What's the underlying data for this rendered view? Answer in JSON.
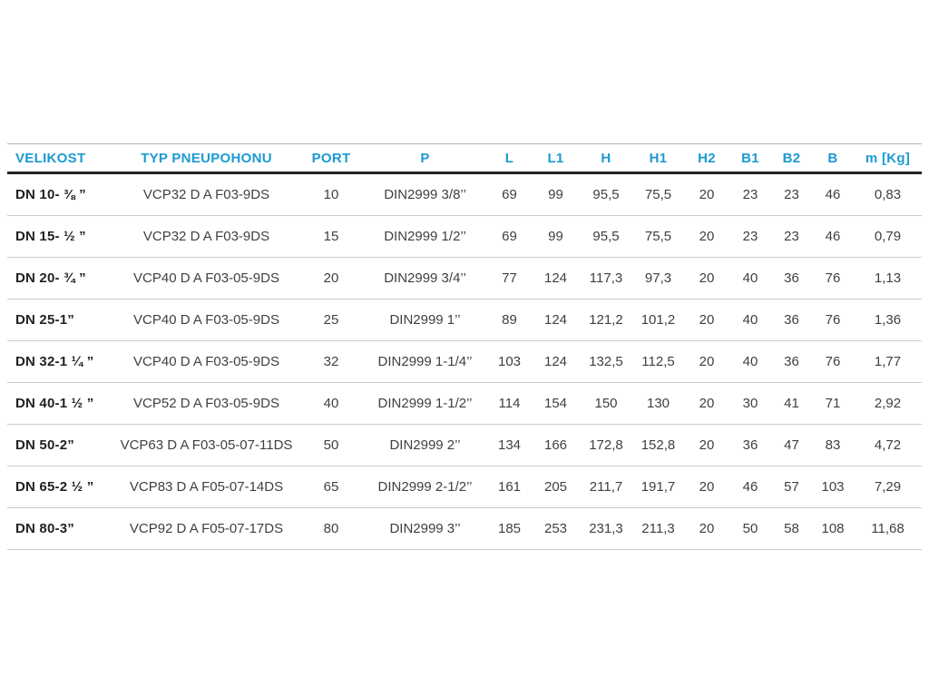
{
  "colors": {
    "header_text": "#1b9ad3",
    "header_rule_top": "#b5b5b5",
    "header_rule_bottom": "#26221f",
    "row_divider": "#cccccc",
    "first_column_text": "#231f20",
    "cell_text": "#414040"
  },
  "table": {
    "columns": [
      {
        "key": "velikost",
        "label": "VELIKOST"
      },
      {
        "key": "typ",
        "label": "TYP PNEUPOHONU"
      },
      {
        "key": "port",
        "label": "PORT"
      },
      {
        "key": "p",
        "label": "P"
      },
      {
        "key": "l",
        "label": "L"
      },
      {
        "key": "l1",
        "label": "L1"
      },
      {
        "key": "h",
        "label": "H"
      },
      {
        "key": "h1",
        "label": "H1"
      },
      {
        "key": "h2",
        "label": "H2"
      },
      {
        "key": "b1",
        "label": "B1"
      },
      {
        "key": "b2",
        "label": "B2"
      },
      {
        "key": "b",
        "label": "B"
      },
      {
        "key": "m",
        "label": "m [Kg]"
      }
    ],
    "rows": [
      {
        "velikost": "DN 10- ⅜ ”",
        "typ": "VCP32 D A F03-9DS",
        "port": "10",
        "p": "DIN2999 3/8’’",
        "l": "69",
        "l1": "99",
        "h": "95,5",
        "h1": "75,5",
        "h2": "20",
        "b1": "23",
        "b2": "23",
        "b": "46",
        "m": "0,83"
      },
      {
        "velikost": "DN 15- ½ ”",
        "typ": "VCP32 D A F03-9DS",
        "port": "15",
        "p": "DIN2999 1/2’’",
        "l": "69",
        "l1": "99",
        "h": "95,5",
        "h1": "75,5",
        "h2": "20",
        "b1": "23",
        "b2": "23",
        "b": "46",
        "m": "0,79"
      },
      {
        "velikost": "DN 20- ¾ ”",
        "typ": "VCP40 D A F03-05-9DS",
        "port": "20",
        "p": "DIN2999 3/4’’",
        "l": "77",
        "l1": "124",
        "h": "117,3",
        "h1": "97,3",
        "h2": "20",
        "b1": "40",
        "b2": "36",
        "b": "76",
        "m": "1,13"
      },
      {
        "velikost": "DN 25-1”",
        "typ": "VCP40 D A F03-05-9DS",
        "port": "25",
        "p": "DIN2999 1’’",
        "l": "89",
        "l1": "124",
        "h": "121,2",
        "h1": "101,2",
        "h2": "20",
        "b1": "40",
        "b2": "36",
        "b": "76",
        "m": "1,36"
      },
      {
        "velikost": "DN 32-1 ¼ ”",
        "typ": "VCP40 D A F03-05-9DS",
        "port": "32",
        "p": "DIN2999 1-1/4’’",
        "l": "103",
        "l1": "124",
        "h": "132,5",
        "h1": "112,5",
        "h2": "20",
        "b1": "40",
        "b2": "36",
        "b": "76",
        "m": "1,77"
      },
      {
        "velikost": "DN 40-1 ½ ”",
        "typ": "VCP52 D A F03-05-9DS",
        "port": "40",
        "p": "DIN2999 1-1/2’’",
        "l": "114",
        "l1": "154",
        "h": "150",
        "h1": "130",
        "h2": "20",
        "b1": "30",
        "b2": "41",
        "b": "71",
        "m": "2,92"
      },
      {
        "velikost": "DN 50-2”",
        "typ": "VCP63 D A F03-05-07-11DS",
        "port": "50",
        "p": "DIN2999 2’’",
        "l": "134",
        "l1": "166",
        "h": "172,8",
        "h1": "152,8",
        "h2": "20",
        "b1": "36",
        "b2": "47",
        "b": "83",
        "m": "4,72"
      },
      {
        "velikost": "DN 65-2 ½ ”",
        "typ": "VCP83 D A F05-07-14DS",
        "port": "65",
        "p": "DIN2999 2-1/2’’",
        "l": "161",
        "l1": "205",
        "h": "211,7",
        "h1": "191,7",
        "h2": "20",
        "b1": "46",
        "b2": "57",
        "b": "103",
        "m": "7,29"
      },
      {
        "velikost": "DN 80-3”",
        "typ": "VCP92 D A F05-07-17DS",
        "port": "80",
        "p": "DIN2999 3’’",
        "l": "185",
        "l1": "253",
        "h": "231,3",
        "h1": "211,3",
        "h2": "20",
        "b1": "50",
        "b2": "58",
        "b": "108",
        "m": "11,68"
      }
    ]
  }
}
